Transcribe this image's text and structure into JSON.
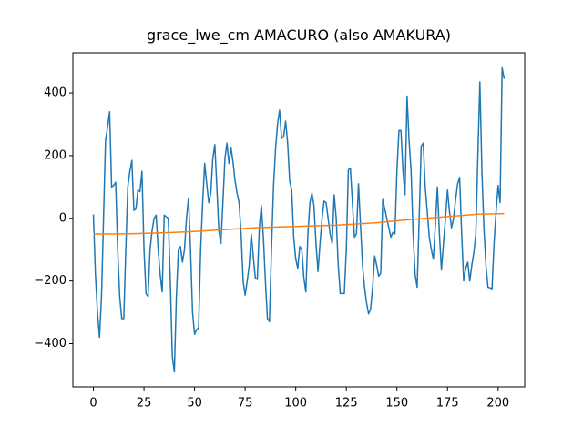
{
  "chart_data": {
    "type": "line",
    "title": "grace_lwe_cm AMACURO (also AMAKURA)",
    "x": [
      0,
      1,
      2,
      3,
      4,
      5,
      6,
      7,
      8,
      9,
      10,
      11,
      12,
      13,
      14,
      15,
      16,
      17,
      18,
      19,
      20,
      21,
      22,
      23,
      24,
      25,
      26,
      27,
      28,
      29,
      30,
      31,
      32,
      33,
      34,
      35,
      36,
      37,
      38,
      39,
      40,
      41,
      42,
      43,
      44,
      45,
      46,
      47,
      48,
      49,
      50,
      51,
      52,
      53,
      54,
      55,
      56,
      57,
      58,
      59,
      60,
      61,
      62,
      63,
      64,
      65,
      66,
      67,
      68,
      69,
      70,
      71,
      72,
      73,
      74,
      75,
      76,
      77,
      78,
      79,
      80,
      81,
      82,
      83,
      84,
      85,
      86,
      87,
      88,
      89,
      90,
      91,
      92,
      93,
      94,
      95,
      96,
      97,
      98,
      99,
      100,
      101,
      102,
      103,
      104,
      105,
      106,
      107,
      108,
      109,
      110,
      111,
      112,
      113,
      114,
      115,
      116,
      117,
      118,
      119,
      120,
      121,
      122,
      123,
      124,
      125,
      126,
      127,
      128,
      129,
      130,
      131,
      132,
      133,
      134,
      135,
      136,
      137,
      138,
      139,
      140,
      141,
      142,
      143,
      144,
      145,
      146,
      147,
      148,
      149,
      150,
      151,
      152,
      153,
      154,
      155,
      156,
      157,
      158,
      159,
      160,
      161,
      162,
      163,
      164,
      165,
      166,
      167,
      168,
      169,
      170,
      171,
      172,
      173,
      174,
      175,
      176,
      177,
      178,
      179,
      180,
      181,
      182,
      183,
      184,
      185,
      186,
      187,
      188,
      189,
      190,
      191,
      192,
      193,
      194,
      195,
      196,
      197,
      198,
      199,
      200,
      201,
      202,
      203
    ],
    "series": [
      {
        "color": "#1f77b4",
        "values": [
          12,
          -180,
          -300,
          -380,
          -250,
          0,
          250,
          290,
          340,
          100,
          105,
          115,
          -100,
          -250,
          -320,
          -320,
          -100,
          100,
          150,
          185,
          25,
          30,
          90,
          85,
          150,
          -100,
          -240,
          -250,
          -100,
          -40,
          0,
          10,
          -100,
          -180,
          -235,
          10,
          5,
          0,
          -200,
          -440,
          -490,
          -250,
          -100,
          -90,
          -140,
          -100,
          0,
          65,
          -100,
          -300,
          -370,
          -355,
          -350,
          -100,
          50,
          175,
          110,
          50,
          80,
          190,
          235,
          100,
          -40,
          -80,
          50,
          190,
          240,
          175,
          225,
          180,
          120,
          80,
          50,
          -50,
          -200,
          -245,
          -200,
          -150,
          -50,
          -120,
          -190,
          -195,
          -30,
          40,
          -60,
          -200,
          -320,
          -330,
          -100,
          100,
          220,
          300,
          345,
          255,
          260,
          310,
          240,
          120,
          90,
          -60,
          -130,
          -160,
          -90,
          -100,
          -190,
          -235,
          -50,
          50,
          80,
          40,
          -80,
          -170,
          -80,
          0,
          55,
          50,
          0,
          -50,
          -80,
          75,
          0,
          -150,
          -240,
          -240,
          -240,
          -100,
          155,
          160,
          50,
          -60,
          -50,
          110,
          -20,
          -150,
          -220,
          -270,
          -305,
          -290,
          -220,
          -120,
          -150,
          -185,
          -175,
          60,
          30,
          0,
          -30,
          -60,
          -45,
          -50,
          150,
          280,
          280,
          150,
          75,
          390,
          250,
          150,
          -50,
          -180,
          -220,
          0,
          230,
          240,
          100,
          20,
          -60,
          -100,
          -130,
          -20,
          100,
          -50,
          -165,
          -80,
          0,
          90,
          20,
          -30,
          0,
          60,
          110,
          130,
          -50,
          -200,
          -160,
          -140,
          -200,
          -150,
          -110,
          -50,
          200,
          435,
          150,
          -30,
          -150,
          -220,
          -222,
          -225,
          -80,
          20,
          105,
          50,
          480,
          445
        ]
      },
      {
        "color": "#ff7f0e",
        "x": [
          0,
          10,
          20,
          30,
          40,
          50,
          60,
          70,
          80,
          90,
          100,
          110,
          120,
          130,
          140,
          150,
          160,
          170,
          180,
          190,
          203
        ],
        "values": [
          -50,
          -50,
          -49,
          -47,
          -45,
          -42,
          -38,
          -34,
          -30,
          -28,
          -26,
          -24,
          -22,
          -18,
          -14,
          -8,
          -2,
          3,
          8,
          13,
          15
        ]
      }
    ],
    "xlim": [
      -10.15,
      213.15
    ],
    "ylim": [
      -538,
      528
    ],
    "xticks": [
      0,
      25,
      50,
      75,
      100,
      125,
      150,
      175,
      200
    ],
    "yticks": [
      {
        "value": -400,
        "label": "−400"
      },
      {
        "value": -200,
        "label": "−200"
      },
      0,
      200,
      400
    ]
  }
}
